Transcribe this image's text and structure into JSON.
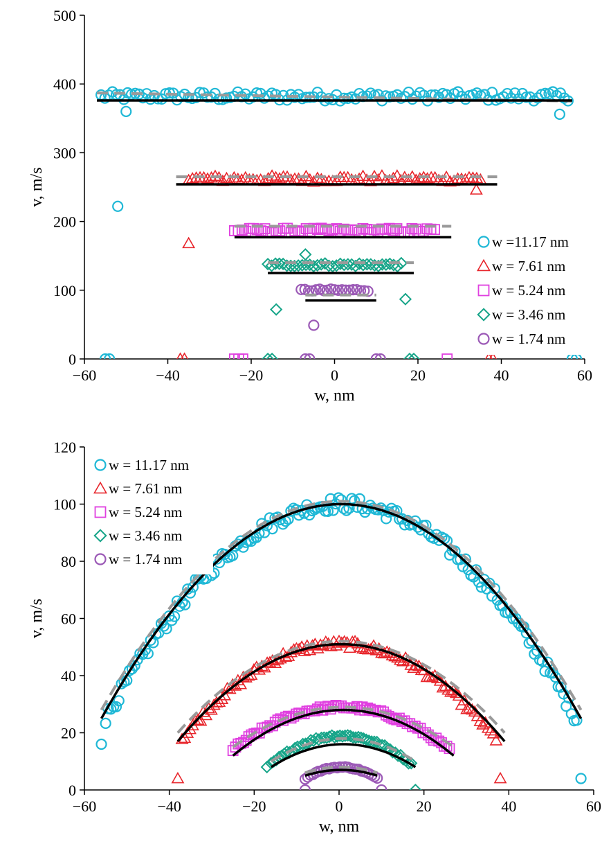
{
  "chart_data": [
    {
      "type": "scatter",
      "xlabel": "w, nm",
      "ylabel": "v, m/s",
      "xlim": [
        -60,
        60
      ],
      "ylim": [
        0,
        500
      ],
      "xticks": [
        -60,
        -40,
        -20,
        0,
        20,
        40,
        60
      ],
      "yticks": [
        0,
        100,
        200,
        300,
        400,
        500
      ],
      "xtick_labels": [
        "−60",
        "−40",
        "−20",
        "0",
        "20",
        "40",
        "60"
      ],
      "ytick_labels": [
        "0",
        "100",
        "200",
        "300",
        "400",
        "500"
      ],
      "grid": false,
      "legend_position": "right",
      "series": [
        {
          "name": "w =11.17 nm",
          "marker": "circle",
          "color": "#1fb8d6",
          "half_width": 56,
          "plateau": 380,
          "outliers": [
            [
              -55,
              0
            ],
            [
              -54,
              0
            ],
            [
              -52,
              222
            ],
            [
              -50,
              360
            ],
            [
              54,
              356
            ],
            [
              57,
              0
            ],
            [
              58,
              0
            ]
          ],
          "fit_solid": {
            "x": [
              -57,
              57
            ],
            "y": [
              376,
              376
            ]
          },
          "fit_dashed": {
            "x": [
              -57,
              57
            ],
            "y": [
              387,
              375
            ]
          }
        },
        {
          "name": "w = 7.61 nm",
          "marker": "triangle",
          "color": "#e8262c",
          "half_width": 35,
          "plateau": 260,
          "outliers": [
            [
              -37,
              0
            ],
            [
              -36,
              0
            ],
            [
              -35,
              168
            ],
            [
              34,
              246
            ],
            [
              37,
              0
            ],
            [
              38,
              0
            ]
          ],
          "fit_solid": {
            "x": [
              -38,
              39
            ],
            "y": [
              254,
              254
            ]
          },
          "fit_dashed": {
            "x": [
              -38,
              39
            ],
            "y": [
              265,
              265
            ]
          }
        },
        {
          "name": "w = 5.24 nm",
          "marker": "square",
          "color": "#e040e0",
          "half_width": 24,
          "plateau": 185,
          "outliers": [
            [
              -24,
              0
            ],
            [
              -23,
              0
            ],
            [
              -22,
              0
            ],
            [
              27,
              0
            ]
          ],
          "fit_solid": {
            "x": [
              -24,
              28
            ],
            "y": [
              177,
              177
            ]
          },
          "fit_dashed": {
            "x": [
              -24,
              28
            ],
            "y": [
              193,
              193
            ]
          }
        },
        {
          "name": "w = 3.46 nm",
          "marker": "diamond",
          "color": "#17a589",
          "half_width": 16,
          "plateau": 135,
          "outliers": [
            [
              -16,
              0
            ],
            [
              -15,
              0
            ],
            [
              -14,
              72
            ],
            [
              -7,
              152
            ],
            [
              17,
              87
            ],
            [
              18,
              0
            ],
            [
              19,
              0
            ]
          ],
          "fit_solid": {
            "x": [
              -16,
              19
            ],
            "y": [
              125,
              125
            ]
          },
          "fit_dashed": {
            "x": [
              -16,
              19
            ],
            "y": [
              140,
              140
            ]
          }
        },
        {
          "name": "w = 1.74 nm",
          "marker": "circle",
          "color": "#9b59b6",
          "half_width": 8,
          "plateau": 98,
          "outliers": [
            [
              -7,
              0
            ],
            [
              -6,
              0
            ],
            [
              -5,
              49
            ],
            [
              10,
              0
            ],
            [
              11,
              0
            ]
          ],
          "fit_solid": {
            "x": [
              -7,
              10
            ],
            "y": [
              85,
              85
            ]
          },
          "fit_dashed": {
            "x": [
              -7,
              10
            ],
            "y": [
              93,
              93
            ]
          }
        }
      ]
    },
    {
      "type": "scatter",
      "xlabel": "w, nm",
      "ylabel": "v, m/s",
      "xlim": [
        -60,
        60
      ],
      "ylim": [
        0,
        120
      ],
      "xticks": [
        -60,
        -40,
        -20,
        0,
        20,
        40,
        60
      ],
      "yticks": [
        0,
        20,
        40,
        60,
        80,
        100,
        120
      ],
      "xtick_labels": [
        "−60",
        "−40",
        "−20",
        "0",
        "20",
        "40",
        "60"
      ],
      "ytick_labels": [
        "0",
        "20",
        "40",
        "60",
        "80",
        "100",
        "120"
      ],
      "grid": false,
      "legend_position": "top-left",
      "series": [
        {
          "name": "w = 11.17 nm",
          "marker": "circle",
          "color": "#1fb8d6",
          "center": 0,
          "peak": 100,
          "range": [
            -55,
            56
          ],
          "edge": 25,
          "outliers": [
            [
              -56,
              16
            ],
            [
              57,
              4
            ]
          ],
          "fit_solid": {
            "peak": 100,
            "range": [
              -56,
              57
            ],
            "edge": 25
          },
          "fit_dashed": {
            "peak": 101,
            "range": [
              -56,
              57
            ],
            "edge": 28
          }
        },
        {
          "name": "w = 7.61 nm",
          "marker": "triangle",
          "color": "#e8262c",
          "center": 0,
          "peak": 51,
          "range": [
            -37,
            37
          ],
          "edge": 18,
          "outliers": [
            [
              -38,
              4
            ],
            [
              38,
              4
            ]
          ],
          "fit_solid": {
            "peak": 51,
            "range": [
              -38,
              39
            ],
            "edge": 17
          },
          "fit_dashed": {
            "peak": 52,
            "range": [
              -38,
              39
            ],
            "edge": 20
          }
        },
        {
          "name": "w = 5.24 nm",
          "marker": "square",
          "color": "#e040e0",
          "center": 0,
          "peak": 29,
          "range": [
            -25,
            26
          ],
          "edge": 14,
          "outliers": [],
          "fit_solid": {
            "peak": 28,
            "range": [
              -25,
              27
            ],
            "edge": 12
          },
          "fit_dashed": {
            "peak": 29,
            "range": [
              -25,
              27
            ],
            "edge": 15
          }
        },
        {
          "name": "w = 3.46 nm",
          "marker": "diamond",
          "color": "#17a589",
          "center": 0,
          "peak": 19,
          "range": [
            -16,
            17
          ],
          "edge": 9,
          "outliers": [
            [
              -17,
              8
            ],
            [
              18,
              0
            ]
          ],
          "fit_solid": {
            "peak": 16,
            "range": [
              -16,
              18
            ],
            "edge": 8
          },
          "fit_dashed": {
            "peak": 18,
            "range": [
              -16,
              18
            ],
            "edge": 10
          }
        },
        {
          "name": "w = 1.74 nm",
          "marker": "circle",
          "color": "#9b59b6",
          "center": 0,
          "peak": 8,
          "range": [
            -8,
            9
          ],
          "edge": 4,
          "outliers": [
            [
              -8,
              0
            ],
            [
              10,
              0
            ]
          ],
          "fit_solid": {
            "peak": 7,
            "range": [
              -8,
              9
            ],
            "edge": 5
          },
          "fit_dashed": {
            "peak": 8,
            "range": [
              -8,
              9
            ],
            "edge": 6
          }
        }
      ]
    }
  ],
  "colors": {
    "axis": "#000000",
    "fit_solid": "#000000",
    "fit_dashed": "#9a9a9a"
  }
}
